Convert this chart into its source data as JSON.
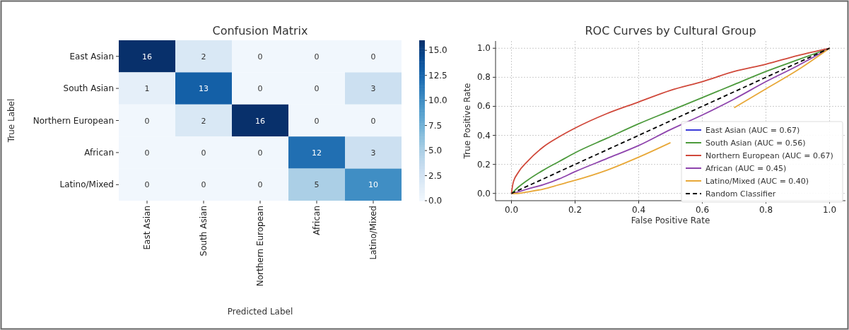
{
  "chart_data": [
    {
      "type": "heatmap",
      "title": "Confusion Matrix",
      "xlabel": "Predicted Label",
      "ylabel": "True Label",
      "categories": [
        "East Asian",
        "South Asian",
        "Northern European",
        "African",
        "Latino/Mixed"
      ],
      "y_categories": [
        "East Asian",
        "South Asian",
        "Northern European",
        "African",
        "Latino/Mixed"
      ],
      "cells": [
        [
          16,
          2,
          0,
          0,
          0
        ],
        [
          1,
          13,
          0,
          0,
          3
        ],
        [
          0,
          2,
          16,
          0,
          0
        ],
        [
          0,
          0,
          0,
          12,
          3
        ],
        [
          0,
          0,
          0,
          5,
          10
        ]
      ],
      "data_labels": true,
      "clim": [
        0,
        16
      ],
      "cticks": [
        {
          "value": 0,
          "label": "0.0"
        },
        {
          "value": 2.5,
          "label": "2.5"
        },
        {
          "value": 5,
          "label": "5.0"
        },
        {
          "value": 7.5,
          "label": "7.5"
        },
        {
          "value": 10,
          "label": "10.0"
        },
        {
          "value": 12.5,
          "label": "12.5"
        },
        {
          "value": 15,
          "label": "15.0"
        }
      ]
    },
    {
      "type": "line",
      "title": "ROC Curves by Cultural Group",
      "xlabel": "False Positive Rate",
      "ylabel": "True Positive Rate",
      "x": [
        0,
        0.005,
        0.02,
        0.05,
        0.1,
        0.15,
        0.2,
        0.3,
        0.4,
        0.5,
        0.6,
        0.7,
        0.8,
        0.9,
        1
      ],
      "xlim": [
        -0.05,
        1.05
      ],
      "ylim": [
        -0.05,
        1.05
      ],
      "xticks": [
        {
          "value": 0,
          "label": "0.0"
        },
        {
          "value": 0.2,
          "label": "0.2"
        },
        {
          "value": 0.4,
          "label": "0.4"
        },
        {
          "value": 0.6,
          "label": "0.6"
        },
        {
          "value": 0.8,
          "label": "0.8"
        },
        {
          "value": 1,
          "label": "1.0"
        }
      ],
      "yticks": [
        {
          "value": 0,
          "label": "0.0"
        },
        {
          "value": 0.2,
          "label": "0.2"
        },
        {
          "value": 0.4,
          "label": "0.4"
        },
        {
          "value": 0.6,
          "label": "0.6"
        },
        {
          "value": 0.8,
          "label": "0.8"
        },
        {
          "value": 1,
          "label": "1.0"
        }
      ],
      "grid": true,
      "legend": "bottom right",
      "line_style": "solid",
      "series": [
        {
          "name": "East Asian (AUC = 0.67)",
          "color": "#3b3bd9",
          "values": [
            null,
            null,
            null,
            null,
            null,
            null,
            null,
            null,
            null,
            null,
            null,
            null,
            null,
            null,
            null
          ]
        },
        {
          "name": "South Asian (AUC = 0.56)",
          "color": "#4c9a3c",
          "values": [
            0,
            0.01,
            0.04,
            0.09,
            0.16,
            0.22,
            0.28,
            0.38,
            0.48,
            0.57,
            0.66,
            0.75,
            0.84,
            0.92,
            1
          ]
        },
        {
          "name": "Northern European (AUC = 0.67)",
          "color": "#d0483a",
          "values": [
            0,
            0.07,
            0.14,
            0.22,
            0.32,
            0.39,
            0.45,
            0.55,
            0.63,
            0.71,
            0.77,
            0.84,
            0.89,
            0.95,
            1
          ]
        },
        {
          "name": "African (AUC = 0.45)",
          "color": "#8e44ad",
          "values": [
            0,
            0,
            0.01,
            0.03,
            0.06,
            0.1,
            0.15,
            0.24,
            0.33,
            0.44,
            0.54,
            0.65,
            0.77,
            0.88,
            1
          ]
        },
        {
          "name": "Latino/Mixed (AUC = 0.40)",
          "color": "#e8a838",
          "values": [
            0,
            0,
            0,
            0.01,
            0.03,
            0.06,
            0.09,
            0.16,
            0.25,
            0.35,
            null,
            0.59,
            0.72,
            0.85,
            1
          ]
        },
        {
          "name": "Random Classifier",
          "color": "#000000",
          "line_style": "dashed",
          "x": [
            0,
            1
          ],
          "values": [
            0,
            1
          ]
        }
      ]
    }
  ]
}
